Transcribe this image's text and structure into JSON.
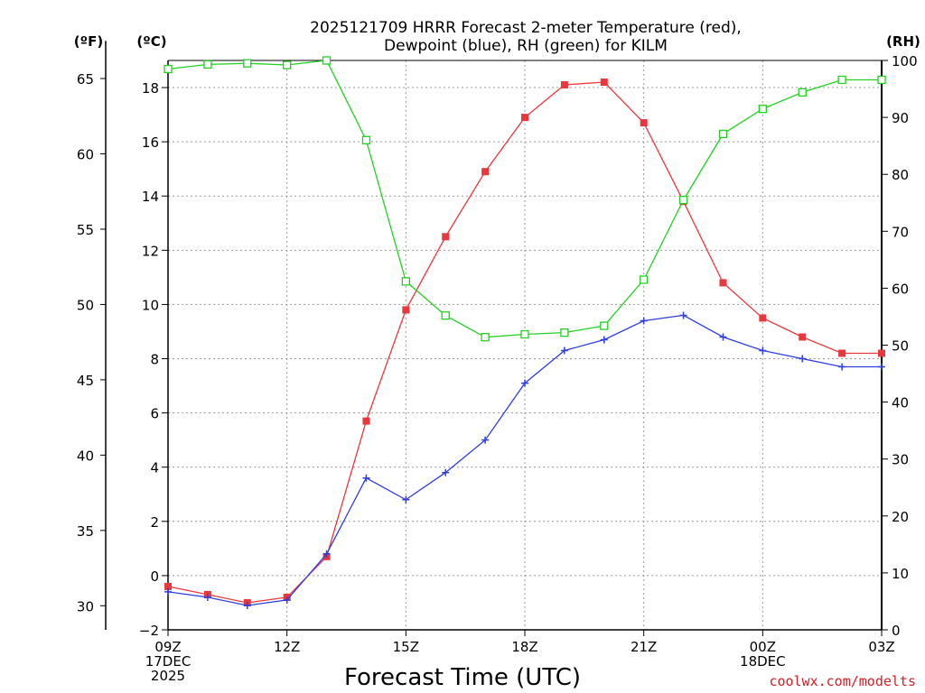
{
  "title_lines": [
    "2025121709 HRRR Forecast 2-meter Temperature (red),",
    "Dewpoint (blue), RH (green) for KILM"
  ],
  "units": {
    "f": "(ºF)",
    "c": "(ºC)",
    "rh": "(RH)"
  },
  "credit": "coolwx.com/modelts",
  "colors": {
    "temperature": "#e8383d",
    "dewpoint": "#2f3fe0",
    "rh": "#23d023",
    "axis": "#000000"
  },
  "chart_data": {
    "type": "line",
    "title": "2025121709 HRRR Forecast 2-meter Temperature (red), Dewpoint (blue), RH (green) for KILM",
    "xlabel": "Forecast Time (UTC)",
    "x": [
      0,
      1,
      2,
      3,
      4,
      5,
      6,
      7,
      8,
      9,
      10,
      11,
      12,
      13,
      14,
      15,
      16,
      17,
      18
    ],
    "x_ticks": [
      {
        "i": 0,
        "lines": [
          "09Z",
          "17DEC",
          "2025"
        ]
      },
      {
        "i": 3,
        "lines": [
          "12Z"
        ]
      },
      {
        "i": 6,
        "lines": [
          "15Z"
        ]
      },
      {
        "i": 9,
        "lines": [
          "18Z"
        ]
      },
      {
        "i": 12,
        "lines": [
          "21Z"
        ]
      },
      {
        "i": 15,
        "lines": [
          "00Z",
          "18DEC"
        ]
      },
      {
        "i": 18,
        "lines": [
          "03Z"
        ]
      }
    ],
    "x_range": [
      0,
      18
    ],
    "y_left_c": {
      "label": "(ºC)",
      "range": [
        -2,
        19
      ],
      "ticks": [
        -2,
        0,
        2,
        4,
        6,
        8,
        10,
        12,
        14,
        16,
        18
      ]
    },
    "y_left_f": {
      "label": "(ºF)",
      "ticks": [
        30,
        35,
        40,
        45,
        50,
        55,
        60,
        65
      ]
    },
    "y_right_rh": {
      "label": "(RH)",
      "range": [
        0,
        100
      ],
      "ticks": [
        0,
        10,
        20,
        30,
        40,
        50,
        60,
        70,
        80,
        90,
        100
      ]
    },
    "grid": true,
    "series": [
      {
        "name": "Temperature",
        "unit": "C",
        "axis": "c",
        "marker": "filled-square",
        "color": "#e8383d",
        "values": [
          -0.4,
          -0.7,
          -1.0,
          -0.8,
          0.7,
          5.7,
          9.8,
          12.5,
          14.9,
          16.9,
          18.1,
          18.2,
          16.7,
          13.8,
          10.8,
          9.5,
          8.8,
          8.2,
          8.2
        ]
      },
      {
        "name": "Dewpoint",
        "unit": "C",
        "axis": "c",
        "marker": "plus",
        "color": "#2f3fe0",
        "values": [
          -0.6,
          -0.8,
          -1.1,
          -0.9,
          0.8,
          3.6,
          2.8,
          3.8,
          5.0,
          7.1,
          8.3,
          8.7,
          9.4,
          9.6,
          8.8,
          8.3,
          8.0,
          7.7,
          7.7
        ]
      },
      {
        "name": "RH",
        "unit": "%",
        "axis": "rh",
        "marker": "open-square",
        "color": "#23d023",
        "values": [
          98.5,
          99.3,
          99.5,
          99.2,
          100,
          86,
          61.2,
          55.2,
          51.4,
          51.9,
          52.2,
          53.4,
          61.5,
          75.5,
          87.1,
          91.5,
          94.4,
          96.6,
          96.6
        ]
      }
    ]
  }
}
